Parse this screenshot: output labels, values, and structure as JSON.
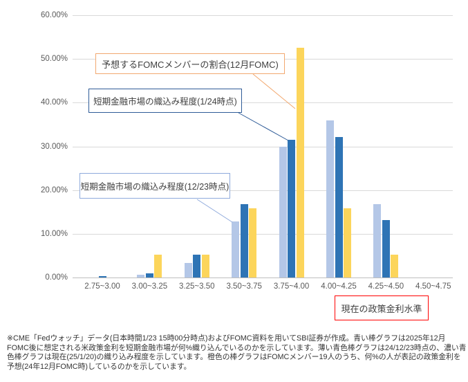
{
  "chart_data": {
    "type": "bar",
    "title": "",
    "xlabel": "",
    "ylabel": "",
    "ylim": [
      0,
      60
    ],
    "ytick_step": 10,
    "ytick_labels": [
      "0.00%",
      "10.00%",
      "20.00%",
      "30.00%",
      "40.00%",
      "50.00%",
      "60.00%"
    ],
    "grid": true,
    "legend_position": "callout-boxes",
    "categories": [
      "2.75~3.00",
      "3.00~3.25",
      "3.25~3.50",
      "3.50~3.75",
      "3.75~4.00",
      "4.00~4.25",
      "4.25~4.50",
      "4.50~4.75"
    ],
    "series": [
      {
        "key": "market-1223",
        "name": "短期金融市場の織込み程度(12/23時点)",
        "color": "#b4c7e7",
        "values": [
          0,
          0.6,
          3.3,
          12.8,
          30.0,
          36.0,
          16.8,
          0
        ]
      },
      {
        "key": "market-0124",
        "name": "短期金融市場の織込み程度(1/24時点)",
        "color": "#2e74b5",
        "values": [
          0.3,
          0.9,
          5.2,
          16.8,
          31.5,
          32.2,
          13.2,
          0
        ]
      },
      {
        "key": "fomc-dec",
        "name": "予想するFOMCメンバーの割合(12月FOMC)",
        "color": "#fcd55b",
        "values": [
          0,
          5.26,
          5.26,
          15.79,
          52.63,
          15.79,
          5.26,
          0
        ]
      }
    ]
  },
  "annotations": {
    "fomc_label": {
      "text": "予想するFOMCメンバーの割合(12月FOMC)",
      "border_color": "#f2a86f"
    },
    "market_0124_label": {
      "text": "短期金融市場の織込み程度(1/24時点)",
      "border_color": "#2e5b97"
    },
    "market_1223_label": {
      "text": "短期金融市場の織込み程度(12/23時点)",
      "border_color": "#8faadc"
    },
    "current_rate_label": {
      "text": "現在の政策金利水準",
      "border_color": "#ff0000"
    }
  },
  "footnote": {
    "lines": [
      "※CME「Fedウォッチ」データ(日本時間1/23 15時00分時点)およびFOMC資料を用いてSBI証券が作成。青い棒グラフは2025年12月",
      "FOMC後に想定される米政策金利を短期金融市場が何%織り込んでいるのかを示しています。薄い青色棒グラフは24/12/23時点の、濃い青",
      "色棒グラフは現在(25/1/20)の織り込み程度を示しています。橙色の棒グラフはFOMCメンバー19人のうち、何%の人が表記の政策金利を",
      "予想(24年12月FOMC時)しているのかを示しています。"
    ]
  }
}
